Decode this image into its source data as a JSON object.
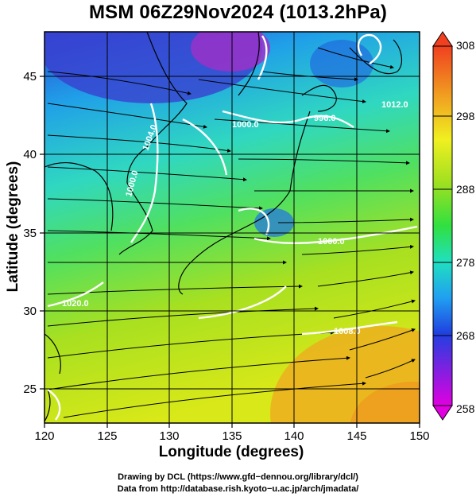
{
  "title": "MSM 06Z29Nov2024 (1013.2hPa)",
  "xaxis": {
    "label": "Longitude (degrees)",
    "range": [
      120,
      150
    ],
    "ticks": [
      "120",
      "125",
      "130",
      "135",
      "140",
      "145",
      "150"
    ]
  },
  "yaxis": {
    "label": "Latitude  (degrees)",
    "range": [
      22.4,
      47.6
    ],
    "ticks": [
      "25",
      "30",
      "35",
      "40",
      "45"
    ]
  },
  "colorbar": {
    "min": 258,
    "max": 308,
    "ticks": [
      "258",
      "268",
      "278",
      "288",
      "298",
      "308"
    ],
    "colors": [
      "#e000e0",
      "#8020e0",
      "#2040e0",
      "#20a0f0",
      "#20e0c0",
      "#40e040",
      "#a0e020",
      "#f0f020",
      "#f0a020",
      "#f04020"
    ]
  },
  "isobars": [
    "1000.0",
    "996.0",
    "1004.0",
    "1000.0",
    "1000.0",
    "1008.0",
    "1020.0",
    "1012.0"
  ],
  "credits": {
    "line1": "Drawing by DCL (https://www.gfd−dennou.org/library/dcl/)",
    "line2": "Data from http://database.rish.kyoto−u.ac.jp/arch/jmadata/"
  }
}
